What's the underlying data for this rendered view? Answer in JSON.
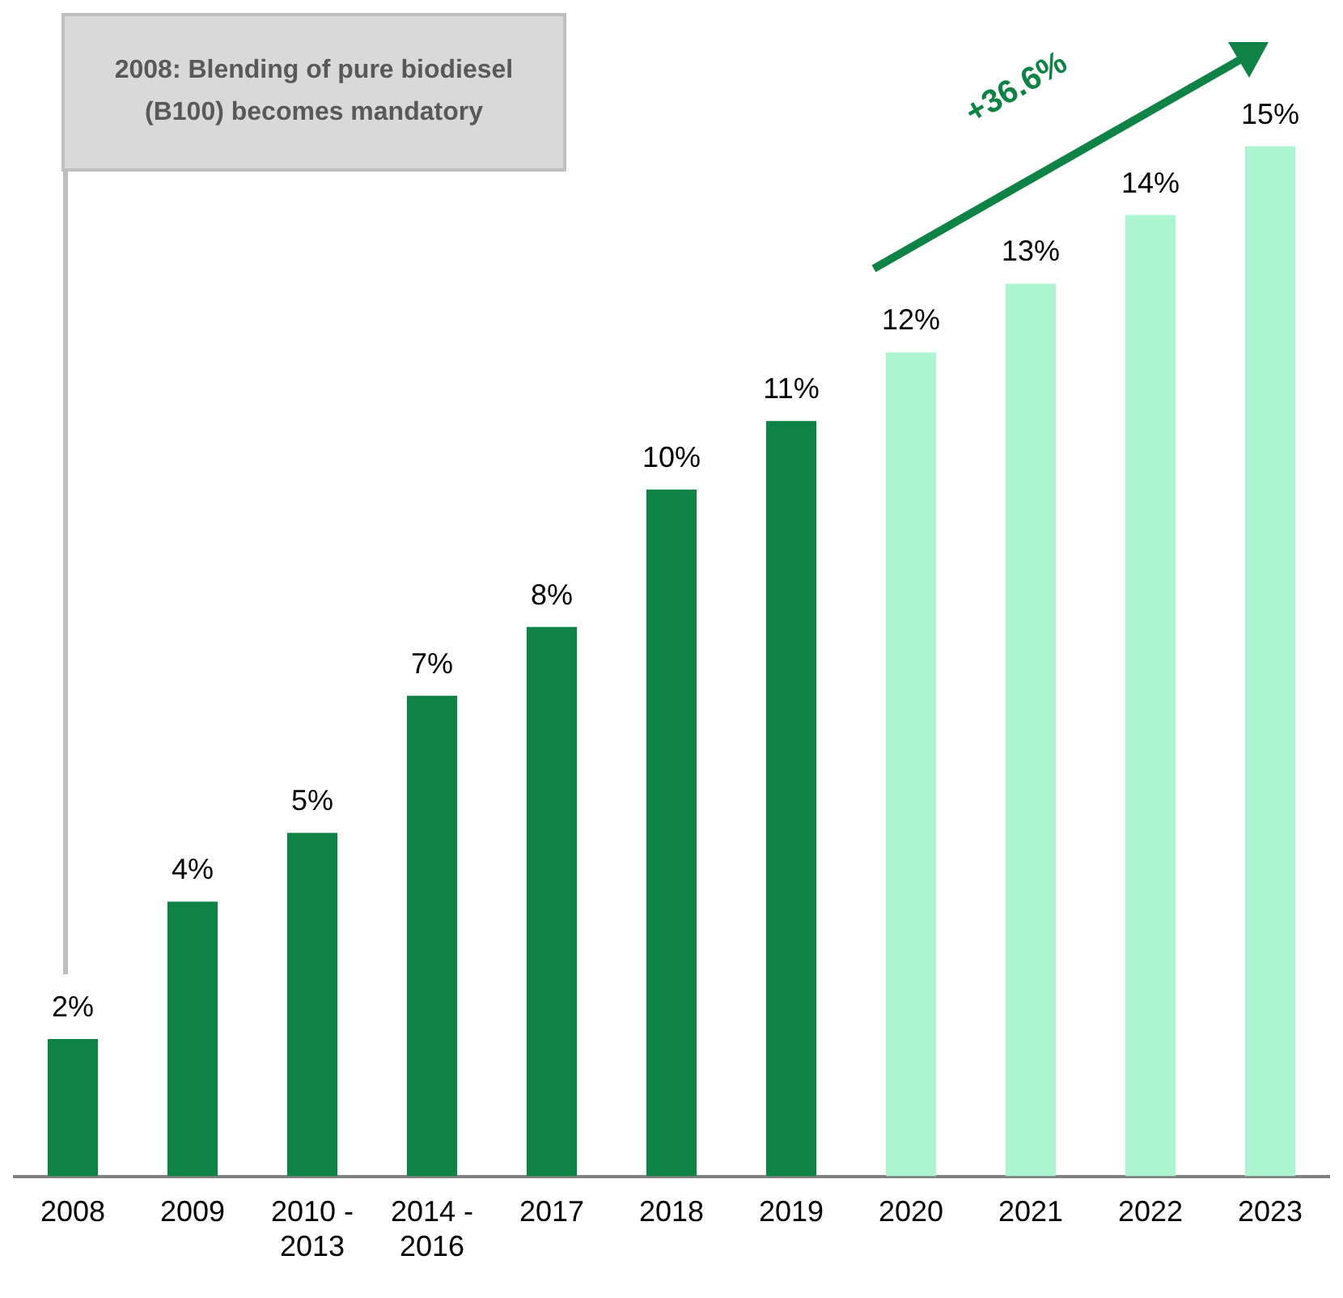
{
  "chart_data": {
    "type": "bar",
    "categories": [
      "2008",
      "2009",
      "2010 - 2013",
      "2014 - 2016",
      "2017",
      "2018",
      "2019",
      "2020",
      "2021",
      "2022",
      "2023"
    ],
    "values": [
      2,
      4,
      5,
      7,
      8,
      10,
      11,
      12,
      13,
      14,
      15
    ],
    "colors": [
      "#0e8345",
      "#0e8345",
      "#0e8345",
      "#0e8345",
      "#0e8345",
      "#0e8345",
      "#0e8345",
      "#adf5d0",
      "#adf5d0",
      "#adf5d0",
      "#adf5d0"
    ],
    "value_labels": [
      "2%",
      "4%",
      "5%",
      "7%",
      "8%",
      "10%",
      "11%",
      "12%",
      "13%",
      "14%",
      "15%"
    ],
    "annotations": [
      "2008: Blending of pure biodiesel (B100) becomes mandatory",
      "+36.6%"
    ],
    "grid": false,
    "legend": false
  }
}
